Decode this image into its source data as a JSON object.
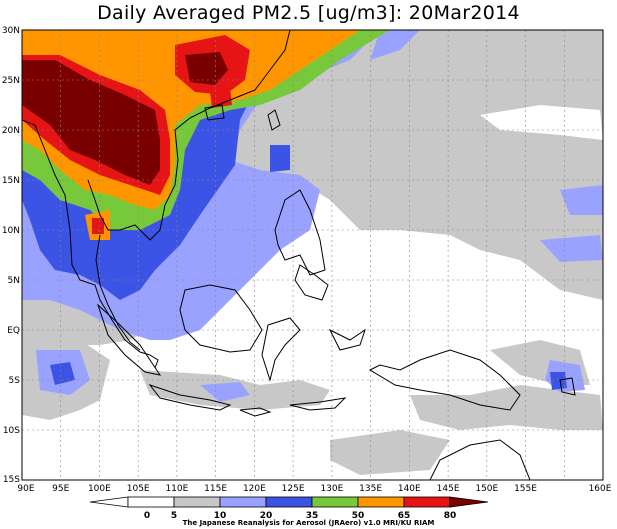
{
  "title": "Daily Averaged PM2.5 [ug/m3]: 20Mar2014",
  "credit": "The Japanese Reanalysis for Aerosol (JRAero) v1.0 MRI/KU RIAM",
  "lat_labels": [
    "30N",
    "25N",
    "20N",
    "15N",
    "10N",
    "5N",
    "EQ",
    "5S",
    "10S",
    "15S"
  ],
  "lon_labels": [
    "90E",
    "95E",
    "100E",
    "105E",
    "110E",
    "115E",
    "120E",
    "125E",
    "130E",
    "135E",
    "140E",
    "145E",
    "150E",
    "155E",
    "160E"
  ],
  "colorbar": {
    "ticks": [
      "0",
      "5",
      "10",
      "20",
      "35",
      "50",
      "65",
      "80"
    ],
    "colors": [
      "#ffffff",
      "#c8c8c8",
      "#9aa2ff",
      "#3c54e6",
      "#78c83c",
      "#ff9600",
      "#e61414",
      "#7a0000"
    ]
  }
}
